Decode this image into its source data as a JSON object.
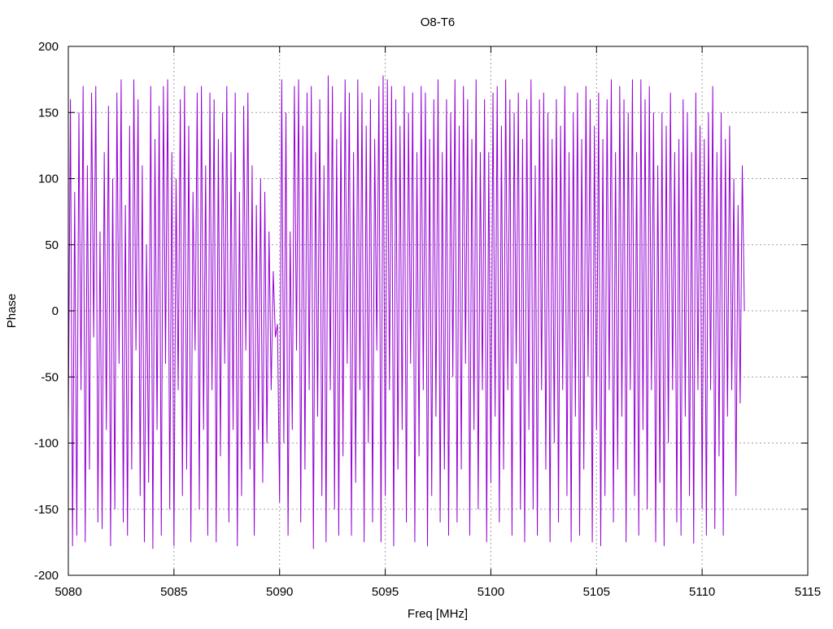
{
  "chart_data": {
    "type": "line",
    "title": "O8-T6",
    "xlabel": "Freq [MHz]",
    "ylabel": "Phase",
    "xlim": [
      5080,
      5115
    ],
    "ylim": [
      -200,
      200
    ],
    "x_ticks": [
      5080,
      5085,
      5090,
      5095,
      5100,
      5105,
      5110,
      5115
    ],
    "y_ticks": [
      -200,
      -150,
      -100,
      -50,
      0,
      50,
      100,
      150,
      200
    ],
    "x_tick_labels": [
      "5080",
      "5085",
      "5090",
      "5095",
      "5100",
      "5105",
      "5110",
      "5115"
    ],
    "y_tick_labels": [
      "-200",
      "-150",
      "-100",
      "-50",
      "0",
      "50",
      "100",
      "150",
      "200"
    ],
    "grid": true,
    "legend": "none",
    "series": [
      {
        "color": "#9400d3",
        "x": [
          5080.0,
          5080.1,
          5080.2,
          5080.3,
          5080.4,
          5080.5,
          5080.6,
          5080.7,
          5080.8,
          5080.9,
          5081.0,
          5081.1,
          5081.2,
          5081.3,
          5081.4,
          5081.5,
          5081.6,
          5081.7,
          5081.8,
          5081.9,
          5082.0,
          5082.1,
          5082.2,
          5082.3,
          5082.4,
          5082.5,
          5082.6,
          5082.7,
          5082.8,
          5082.9,
          5083.0,
          5083.1,
          5083.2,
          5083.3,
          5083.4,
          5083.5,
          5083.6,
          5083.7,
          5083.8,
          5083.9,
          5084.0,
          5084.1,
          5084.2,
          5084.3,
          5084.4,
          5084.5,
          5084.6,
          5084.7,
          5084.8,
          5084.9,
          5085.0,
          5085.1,
          5085.2,
          5085.3,
          5085.4,
          5085.5,
          5085.6,
          5085.7,
          5085.8,
          5085.9,
          5086.0,
          5086.1,
          5086.2,
          5086.3,
          5086.4,
          5086.5,
          5086.6,
          5086.7,
          5086.8,
          5086.9,
          5087.0,
          5087.1,
          5087.2,
          5087.3,
          5087.4,
          5087.5,
          5087.6,
          5087.7,
          5087.8,
          5087.9,
          5088.0,
          5088.1,
          5088.2,
          5088.3,
          5088.4,
          5088.5,
          5088.6,
          5088.7,
          5088.8,
          5088.9,
          5089.0,
          5089.1,
          5089.2,
          5089.3,
          5089.4,
          5089.5,
          5089.6,
          5089.7,
          5089.8,
          5089.9,
          5090.0,
          5090.1,
          5090.2,
          5090.3,
          5090.4,
          5090.5,
          5090.6,
          5090.7,
          5090.8,
          5090.9,
          5091.0,
          5091.1,
          5091.2,
          5091.3,
          5091.4,
          5091.5,
          5091.6,
          5091.7,
          5091.8,
          5091.9,
          5092.0,
          5092.1,
          5092.2,
          5092.3,
          5092.4,
          5092.5,
          5092.6,
          5092.7,
          5092.8,
          5092.9,
          5093.0,
          5093.1,
          5093.2,
          5093.3,
          5093.4,
          5093.5,
          5093.6,
          5093.7,
          5093.8,
          5093.9,
          5094.0,
          5094.1,
          5094.2,
          5094.3,
          5094.4,
          5094.5,
          5094.6,
          5094.7,
          5094.8,
          5094.9,
          5095.0,
          5095.1,
          5095.2,
          5095.3,
          5095.4,
          5095.5,
          5095.6,
          5095.7,
          5095.8,
          5095.9,
          5096.0,
          5096.1,
          5096.2,
          5096.3,
          5096.4,
          5096.5,
          5096.6,
          5096.7,
          5096.8,
          5096.9,
          5097.0,
          5097.1,
          5097.2,
          5097.3,
          5097.4,
          5097.5,
          5097.6,
          5097.7,
          5097.8,
          5097.9,
          5098.0,
          5098.1,
          5098.2,
          5098.3,
          5098.4,
          5098.5,
          5098.6,
          5098.7,
          5098.8,
          5098.9,
          5099.0,
          5099.1,
          5099.2,
          5099.3,
          5099.4,
          5099.5,
          5099.6,
          5099.7,
          5099.8,
          5099.9,
          5100.0,
          5100.1,
          5100.2,
          5100.3,
          5100.4,
          5100.5,
          5100.6,
          5100.7,
          5100.8,
          5100.9,
          5101.0,
          5101.1,
          5101.2,
          5101.3,
          5101.4,
          5101.5,
          5101.6,
          5101.7,
          5101.8,
          5101.9,
          5102.0,
          5102.1,
          5102.2,
          5102.3,
          5102.4,
          5102.5,
          5102.6,
          5102.7,
          5102.8,
          5102.9,
          5103.0,
          5103.1,
          5103.2,
          5103.3,
          5103.4,
          5103.5,
          5103.6,
          5103.7,
          5103.8,
          5103.9,
          5104.0,
          5104.1,
          5104.2,
          5104.3,
          5104.4,
          5104.5,
          5104.6,
          5104.7,
          5104.8,
          5104.9,
          5105.0,
          5105.1,
          5105.2,
          5105.3,
          5105.4,
          5105.5,
          5105.6,
          5105.7,
          5105.8,
          5105.9,
          5106.0,
          5106.1,
          5106.2,
          5106.3,
          5106.4,
          5106.5,
          5106.6,
          5106.7,
          5106.8,
          5106.9,
          5107.0,
          5107.1,
          5107.2,
          5107.3,
          5107.4,
          5107.5,
          5107.6,
          5107.7,
          5107.8,
          5107.9,
          5108.0,
          5108.1,
          5108.2,
          5108.3,
          5108.4,
          5108.5,
          5108.6,
          5108.7,
          5108.8,
          5108.9,
          5109.0,
          5109.1,
          5109.2,
          5109.3,
          5109.4,
          5109.5,
          5109.6,
          5109.7,
          5109.8,
          5109.9,
          5110.0,
          5110.1,
          5110.2,
          5110.3,
          5110.4,
          5110.5,
          5110.6,
          5110.7,
          5110.8,
          5110.9,
          5111.0,
          5111.1,
          5111.2,
          5111.3,
          5111.4,
          5111.5,
          5111.6,
          5111.7,
          5111.8,
          5111.9,
          5112.0
        ],
        "y": [
          -85,
          160,
          -178,
          90,
          -170,
          150,
          -60,
          170,
          -175,
          110,
          -120,
          165,
          -20,
          170,
          -160,
          60,
          -165,
          120,
          -90,
          155,
          -178,
          100,
          -150,
          165,
          -40,
          175,
          -160,
          80,
          -170,
          140,
          -120,
          175,
          -30,
          160,
          -140,
          110,
          -175,
          50,
          -130,
          170,
          -180,
          130,
          -90,
          155,
          -170,
          170,
          -40,
          175,
          -150,
          120,
          -178,
          100,
          -60,
          160,
          -140,
          170,
          -120,
          140,
          -175,
          90,
          -30,
          165,
          -150,
          170,
          -90,
          110,
          -170,
          165,
          -60,
          160,
          -175,
          130,
          -110,
          150,
          -40,
          170,
          -160,
          120,
          -90,
          165,
          -178,
          90,
          -140,
          155,
          -30,
          165,
          -120,
          110,
          -170,
          80,
          -90,
          100,
          -130,
          90,
          -100,
          60,
          -60,
          30,
          -20,
          -10,
          -145,
          175,
          -100,
          150,
          -170,
          60,
          -90,
          170,
          -30,
          175,
          -160,
          140,
          -120,
          165,
          -60,
          170,
          -180,
          120,
          -80,
          160,
          -140,
          110,
          -175,
          178,
          -60,
          170,
          -150,
          130,
          -170,
          150,
          -110,
          175,
          -40,
          165,
          -170,
          120,
          -130,
          175,
          -60,
          165,
          -175,
          140,
          -100,
          160,
          -160,
          130,
          -30,
          170,
          -175,
          178,
          -140,
          175,
          -60,
          170,
          -178,
          160,
          -120,
          140,
          -90,
          170,
          -160,
          150,
          -40,
          165,
          -175,
          120,
          -110,
          170,
          -60,
          165,
          -178,
          130,
          -140,
          160,
          -80,
          175,
          -160,
          120,
          -120,
          160,
          -170,
          150,
          -50,
          175,
          -160,
          140,
          -120,
          170,
          -40,
          160,
          -170,
          130,
          -90,
          175,
          -150,
          120,
          -60,
          160,
          -175,
          120,
          -130,
          165,
          -80,
          170,
          -160,
          140,
          -120,
          175,
          -60,
          160,
          -170,
          150,
          -40,
          165,
          -150,
          130,
          -175,
          160,
          -90,
          175,
          -150,
          110,
          -170,
          160,
          -60,
          165,
          -120,
          150,
          -175,
          130,
          -100,
          160,
          -160,
          140,
          -60,
          170,
          -140,
          120,
          -175,
          150,
          -80,
          165,
          -170,
          130,
          -120,
          170,
          -50,
          160,
          -175,
          140,
          -90,
          165,
          -178,
          130,
          -140,
          160,
          -60,
          175,
          -160,
          120,
          -120,
          170,
          -80,
          160,
          -175,
          150,
          -60,
          175,
          -140,
          120,
          -170,
          175,
          -90,
          160,
          -150,
          170,
          -60,
          150,
          -175,
          110,
          -130,
          150,
          -178,
          140,
          -100,
          165,
          -60,
          120,
          -160,
          130,
          -170,
          160,
          -80,
          150,
          -140,
          120,
          -176,
          165,
          -60,
          140,
          -150,
          130,
          -170,
          150,
          -60,
          170,
          -165,
          120,
          -110,
          150,
          -170,
          130,
          -80,
          140,
          -60,
          100,
          -140,
          80,
          -70,
          110,
          0
        ]
      }
    ]
  }
}
